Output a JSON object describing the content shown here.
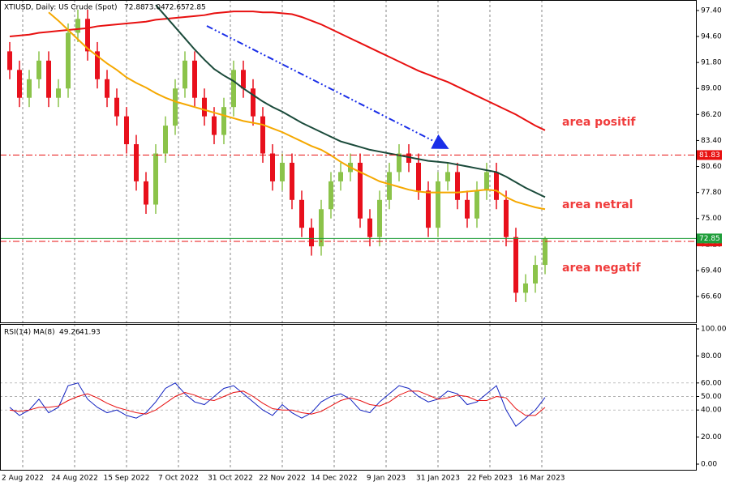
{
  "chart_data": [
    {
      "type": "candlestick",
      "title": "XTIUSD, Daily:  US Crude (Spot)",
      "ohlc": [
        72.88,
        73.04,
        72.65,
        72.85
      ],
      "up_color": "#8bc34a",
      "down_color": "#e8101c",
      "xlim": [
        -1,
        213.5
      ],
      "ylim": [
        63.81,
        98.53
      ],
      "xticks": [
        {
          "value": 6,
          "label": "2 Aug 2022"
        },
        {
          "value": 22,
          "label": "24 Aug 2022"
        },
        {
          "value": 38,
          "label": "15 Sep 2022"
        },
        {
          "value": 54,
          "label": "7 Oct 2022"
        },
        {
          "value": 70,
          "label": "31 Oct 2022"
        },
        {
          "value": 86,
          "label": "22 Nov 2022"
        },
        {
          "value": 102,
          "label": "14 Dec 2022"
        },
        {
          "value": 118,
          "label": "9 Jan 2023"
        },
        {
          "value": 134,
          "label": "31 Jan 2023"
        },
        {
          "value": 150,
          "label": "22 Feb 2023"
        },
        {
          "value": 166,
          "label": "16 Mar 2023"
        }
      ],
      "yticks": [
        {
          "value": 97.4,
          "label": "97.40"
        },
        {
          "value": 94.6,
          "label": "94.60"
        },
        {
          "value": 91.8,
          "label": "91.80"
        },
        {
          "value": 89,
          "label": "89.00"
        },
        {
          "value": 86.2,
          "label": "86.20"
        },
        {
          "value": 83.4,
          "label": "83.40"
        },
        {
          "value": 80.6,
          "label": "80.60"
        },
        {
          "value": 77.8,
          "label": "77.80"
        },
        {
          "value": 75,
          "label": "75.00"
        },
        {
          "value": 72.2,
          "label": "72.20"
        },
        {
          "value": 69.4,
          "label": "69.40"
        },
        {
          "value": 66.6,
          "label": "66.60"
        }
      ],
      "grid": true,
      "x": [
        2,
        5,
        8,
        11,
        14,
        17,
        20,
        23,
        26,
        29,
        32,
        35,
        38,
        41,
        44,
        47,
        50,
        53,
        56,
        59,
        62,
        65,
        68,
        71,
        74,
        77,
        80,
        83,
        86,
        89,
        92,
        95,
        98,
        101,
        104,
        107,
        110,
        113,
        116,
        119,
        122,
        125,
        128,
        131,
        134,
        137,
        140,
        143,
        146,
        149,
        152,
        155,
        158,
        161,
        164,
        167
      ],
      "open": [
        93,
        91,
        88,
        90,
        92,
        88,
        89,
        95,
        96.5,
        93,
        90,
        88,
        86,
        83,
        79,
        76.5,
        82,
        85,
        89,
        92,
        88,
        86,
        84,
        87,
        91,
        89,
        86,
        82,
        79,
        81,
        77,
        74,
        72,
        76,
        79,
        80,
        81,
        75,
        73,
        77,
        80,
        82,
        81,
        78,
        74,
        79,
        80,
        77,
        75,
        78,
        80,
        77,
        73,
        67,
        68,
        70
      ],
      "high": [
        94,
        92,
        91,
        93,
        93,
        90,
        96,
        97.5,
        97.5,
        94,
        91,
        89,
        87,
        84,
        80,
        83,
        86,
        90,
        93,
        93,
        89,
        87,
        88,
        92,
        92,
        90,
        87,
        83,
        82,
        82,
        78,
        75,
        77,
        80,
        81,
        82,
        82,
        76,
        78,
        81,
        83,
        83,
        82,
        79,
        80,
        81,
        81,
        78,
        79,
        81,
        81,
        78,
        74,
        69,
        71,
        73.04
      ],
      "low": [
        90,
        87,
        87,
        89,
        87,
        87,
        88,
        94,
        92,
        89,
        87,
        85,
        82,
        78,
        75.5,
        75.5,
        81,
        84,
        88,
        87,
        85,
        83,
        83,
        86,
        88,
        85,
        81,
        78,
        78,
        76,
        73,
        71,
        71,
        75,
        78,
        79,
        74,
        72,
        72,
        76,
        79,
        80,
        77,
        73,
        73,
        78,
        76,
        74,
        74,
        77,
        76,
        72,
        66,
        66,
        67,
        69
      ],
      "close": [
        91,
        88,
        90,
        92,
        88,
        89,
        95,
        96.5,
        93,
        90,
        88,
        86,
        83,
        79,
        76.5,
        82,
        85,
        89,
        92,
        88,
        86,
        84,
        87,
        91,
        89,
        86,
        82,
        79,
        81,
        77,
        74,
        72,
        76,
        79,
        80,
        81,
        75,
        73,
        77,
        80,
        82,
        81,
        78,
        74,
        79,
        80,
        77,
        75,
        78,
        80,
        77,
        73,
        67,
        68,
        70,
        72.85
      ],
      "series": [
        {
          "color": "#e81010",
          "values": [
            94.6,
            94.7,
            94.8,
            95.0,
            95.1,
            95.2,
            95.3,
            95.4,
            95.5,
            95.7,
            95.8,
            95.9,
            96.0,
            96.1,
            96.2,
            96.4,
            96.5,
            96.6,
            96.7,
            96.8,
            96.9,
            97.1,
            97.2,
            97.3,
            97.3,
            97.3,
            97.2,
            97.2,
            97.1,
            97.0,
            96.7,
            96.3,
            95.9,
            95.4,
            94.9,
            94.4,
            93.9,
            93.4,
            92.9,
            92.4,
            91.9,
            91.4,
            90.9,
            90.5,
            90.1,
            89.7,
            89.2,
            88.7,
            88.2,
            87.7,
            87.2,
            86.7,
            86.2,
            85.6,
            85.0,
            84.5
          ]
        },
        {
          "color": "#1a4a3a",
          "values": [
            null,
            null,
            null,
            null,
            null,
            null,
            null,
            null,
            null,
            null,
            null,
            null,
            null,
            null,
            null,
            98.0,
            96.8,
            95.6,
            94.4,
            93.2,
            92.1,
            91.1,
            90.4,
            89.8,
            89.0,
            88.3,
            87.6,
            87.0,
            86.5,
            85.9,
            85.3,
            84.8,
            84.3,
            83.8,
            83.3,
            83.0,
            82.7,
            82.4,
            82.2,
            82.0,
            81.8,
            81.6,
            81.4,
            81.2,
            81.1,
            81.0,
            80.8,
            80.6,
            80.4,
            80.2,
            80.0,
            79.5,
            78.9,
            78.3,
            77.8,
            77.3
          ]
        },
        {
          "color": "#f5a800",
          "values": [
            null,
            null,
            null,
            null,
            97.2,
            96.3,
            95.3,
            94.3,
            93.3,
            92.5,
            91.7,
            91.0,
            90.2,
            89.6,
            89.1,
            88.5,
            88.0,
            87.6,
            87.3,
            87.0,
            86.7,
            86.4,
            86.1,
            85.8,
            85.5,
            85.3,
            85.1,
            84.7,
            84.3,
            83.8,
            83.3,
            82.8,
            82.4,
            81.8,
            81.1,
            80.5,
            80.0,
            79.5,
            79.0,
            78.7,
            78.4,
            78.1,
            77.9,
            77.8,
            77.8,
            77.8,
            77.8,
            77.9,
            78.0,
            78.1,
            78.0,
            77.3,
            76.8,
            76.5,
            76.2,
            76.0
          ]
        }
      ],
      "price_lines": [
        {
          "value": 81.83,
          "color": "#e81010"
        },
        {
          "value": 72.53,
          "color": "#e81010"
        },
        {
          "value": 72.85,
          "color": "#1f9e3a"
        }
      ],
      "annotations": [
        "area positif",
        "area netral",
        "area negatif"
      ]
    },
    {
      "type": "line",
      "title": "RSI(14) MA(8)",
      "xlim": [
        -1,
        213.5
      ],
      "ylim": [
        -4.2,
        103.6
      ],
      "yticks": [
        {
          "value": 100,
          "label": "100.00"
        },
        {
          "value": 80,
          "label": "80.00"
        },
        {
          "value": 60,
          "label": "60.00"
        },
        {
          "value": 50,
          "label": "50.00"
        },
        {
          "value": 40,
          "label": "40.00"
        },
        {
          "value": 20,
          "label": "20.00"
        },
        {
          "value": 0,
          "label": "0.00"
        }
      ],
      "grid_levels": [
        60,
        50,
        40
      ],
      "x": [
        2,
        5,
        8,
        11,
        14,
        17,
        20,
        23,
        26,
        29,
        32,
        35,
        38,
        41,
        44,
        47,
        50,
        53,
        56,
        59,
        62,
        65,
        68,
        71,
        74,
        77,
        80,
        83,
        86,
        89,
        92,
        95,
        98,
        101,
        104,
        107,
        110,
        113,
        116,
        119,
        122,
        125,
        128,
        131,
        134,
        137,
        140,
        143,
        146,
        149,
        152,
        155,
        158,
        161,
        164,
        167
      ],
      "series": [
        {
          "color": "#1020c0",
          "values": [
            42,
            36,
            40,
            48,
            38,
            42,
            58,
            60,
            48,
            42,
            38,
            40,
            36,
            34,
            38,
            46,
            56,
            60,
            52,
            46,
            44,
            50,
            56,
            58,
            52,
            46,
            40,
            36,
            44,
            38,
            34,
            38,
            46,
            50,
            52,
            48,
            40,
            38,
            46,
            52,
            58,
            56,
            50,
            46,
            48,
            54,
            52,
            44,
            46,
            52,
            58,
            40,
            28,
            34,
            40,
            49.26
          ]
        },
        {
          "color": "#e81010",
          "values": [
            40,
            39,
            40,
            42,
            42,
            43,
            47,
            50,
            52,
            49,
            45,
            42,
            40,
            38,
            37,
            40,
            45,
            50,
            53,
            51,
            48,
            47,
            50,
            53,
            54,
            50,
            45,
            41,
            40,
            40,
            38,
            37,
            39,
            43,
            47,
            49,
            47,
            44,
            43,
            46,
            51,
            54,
            54,
            51,
            48,
            49,
            51,
            50,
            47,
            47,
            50,
            49,
            41,
            36,
            36,
            41.93
          ]
        }
      ]
    }
  ]
}
